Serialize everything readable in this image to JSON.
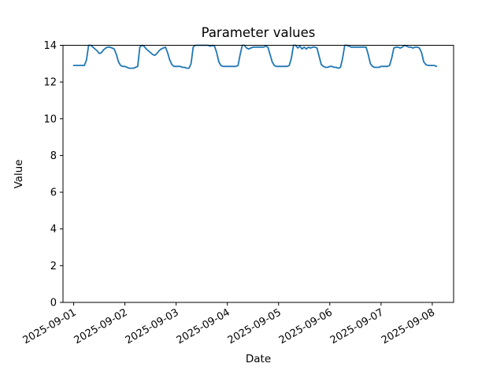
{
  "chart_data": {
    "type": "line",
    "title": "Parameter values",
    "xlabel": "Date",
    "ylabel": "Value",
    "grid": false,
    "legend": "none",
    "background_color": "#ffffff",
    "line_color": "#1f77b4",
    "spine_color": "#000000",
    "ylim": [
      0,
      14
    ],
    "yticks": [
      0,
      2,
      4,
      6,
      8,
      10,
      12,
      14
    ],
    "xlim_hours": [
      -5,
      178
    ],
    "x_start": "2025-09-01 00:00",
    "x_step_hours": 1,
    "xticks": [
      {
        "hour": 0,
        "label": "2025-09-01"
      },
      {
        "hour": 24,
        "label": "2025-09-02"
      },
      {
        "hour": 48,
        "label": "2025-09-03"
      },
      {
        "hour": 72,
        "label": "2025-09-04"
      },
      {
        "hour": 96,
        "label": "2025-09-05"
      },
      {
        "hour": 120,
        "label": "2025-09-06"
      },
      {
        "hour": 144,
        "label": "2025-09-07"
      },
      {
        "hour": 168,
        "label": "2025-09-08"
      }
    ],
    "values": [
      12.9,
      12.9,
      12.9,
      12.9,
      12.9,
      12.9,
      13.2,
      14.0,
      14.0,
      13.9,
      13.8,
      13.7,
      13.55,
      13.6,
      13.75,
      13.85,
      13.9,
      13.9,
      13.85,
      13.8,
      13.5,
      13.1,
      12.9,
      12.85,
      12.85,
      12.8,
      12.75,
      12.75,
      12.75,
      12.8,
      12.85,
      13.9,
      14.0,
      13.95,
      13.8,
      13.7,
      13.6,
      13.5,
      13.45,
      13.55,
      13.7,
      13.8,
      13.85,
      13.9,
      13.6,
      13.2,
      12.95,
      12.85,
      12.85,
      12.85,
      12.85,
      12.8,
      12.8,
      12.75,
      12.75,
      13.0,
      13.9,
      14.0,
      14.0,
      14.0,
      14.0,
      14.0,
      14.0,
      14.0,
      13.95,
      14.0,
      13.95,
      13.6,
      13.1,
      12.9,
      12.85,
      12.85,
      12.85,
      12.85,
      12.85,
      12.85,
      12.85,
      12.9,
      13.5,
      14.0,
      14.0,
      13.85,
      13.8,
      13.85,
      13.9,
      13.9,
      13.9,
      13.9,
      13.9,
      13.9,
      13.95,
      13.9,
      13.5,
      13.1,
      12.9,
      12.85,
      12.85,
      12.85,
      12.85,
      12.85,
      12.85,
      12.9,
      13.3,
      14.0,
      14.0,
      13.85,
      13.95,
      13.8,
      13.9,
      13.8,
      13.9,
      13.85,
      13.9,
      13.9,
      13.85,
      13.4,
      12.95,
      12.85,
      12.8,
      12.8,
      12.85,
      12.85,
      12.8,
      12.8,
      12.75,
      12.8,
      13.3,
      14.0,
      14.0,
      13.95,
      13.9,
      13.9,
      13.9,
      13.9,
      13.9,
      13.9,
      13.9,
      13.9,
      13.5,
      13.0,
      12.85,
      12.8,
      12.8,
      12.8,
      12.85,
      12.85,
      12.85,
      12.85,
      12.9,
      13.3,
      13.85,
      13.9,
      13.9,
      13.85,
      13.9,
      14.0,
      13.95,
      13.9,
      13.9,
      13.85,
      13.9,
      13.9,
      13.85,
      13.6,
      13.1,
      12.95,
      12.9,
      12.9,
      12.9,
      12.9,
      12.85
    ]
  }
}
